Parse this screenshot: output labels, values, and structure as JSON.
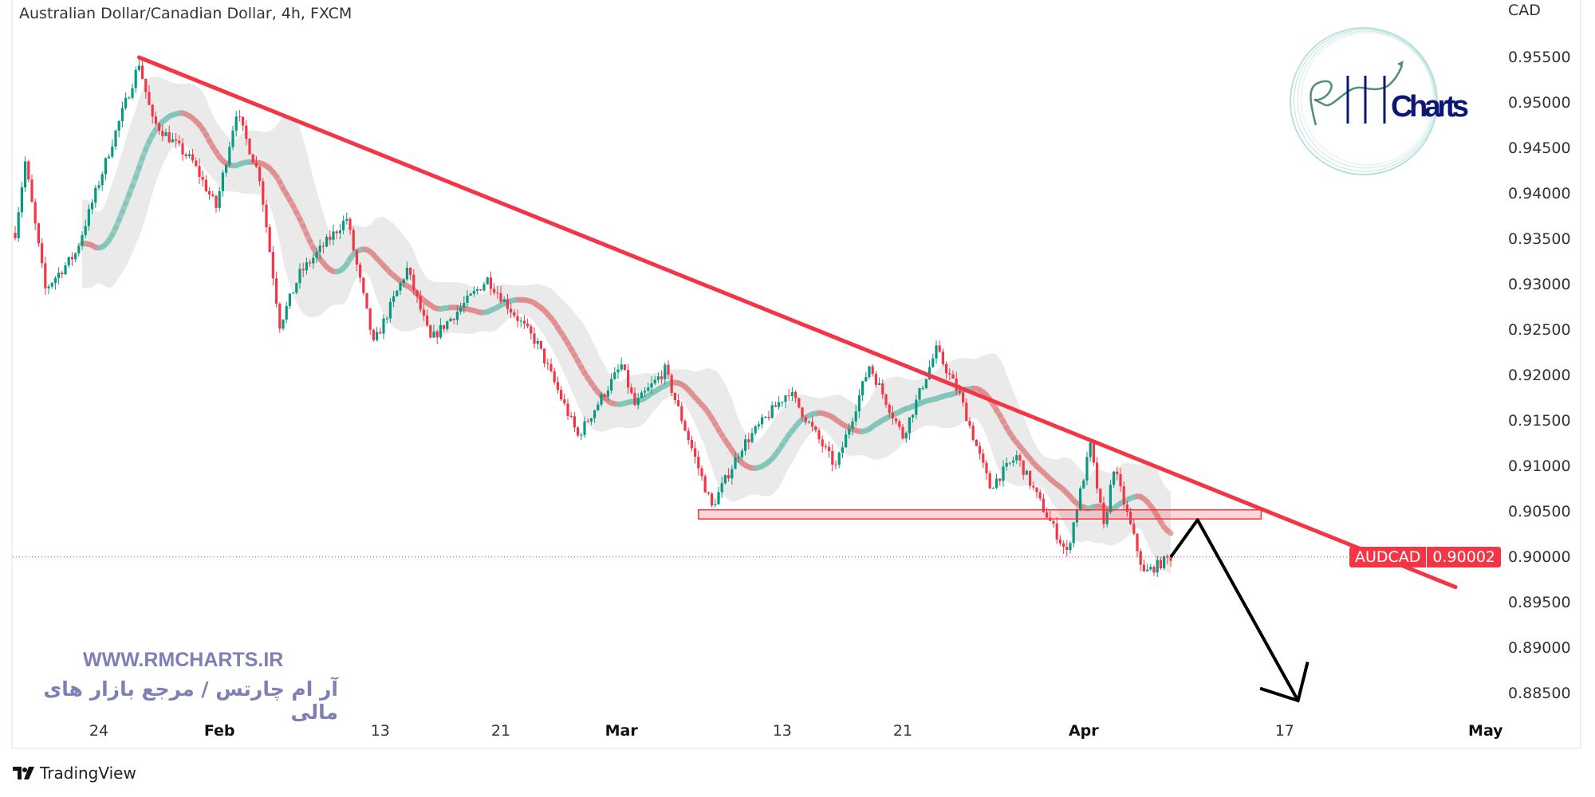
{
  "header": {
    "title": "Australian Dollar/Canadian Dollar, 4h, FXCM",
    "currency": "CAD"
  },
  "footer": {
    "brand": "TradingView"
  },
  "watermark": {
    "url": "WWW.RMCHARTS.IR",
    "tagline": "آر ام چارتس / مرجع بازار های مالی",
    "logo_text": "RM Charts"
  },
  "price_badge": {
    "symbol": "AUDCAD",
    "value": "0.90002"
  },
  "colors": {
    "up": "#089981",
    "down": "#f23645",
    "trendline": "#f23645",
    "arrow": "#000000",
    "ma_up": "#7fc4b8",
    "ma_down": "#e08a8a",
    "logo_navy": "#0d1775",
    "logo_teal": "#a8d8d4",
    "watermark": "#7d7fb5"
  },
  "chart_data": {
    "type": "candlestick",
    "title": "Australian Dollar/Canadian Dollar, 4h, FXCM",
    "ylabel": "CAD",
    "ylim": [
      0.884,
      0.958
    ],
    "y_ticks": [
      "0.95500",
      "0.95000",
      "0.94500",
      "0.94000",
      "0.93500",
      "0.93000",
      "0.92500",
      "0.92000",
      "0.91500",
      "0.91000",
      "0.90500",
      "0.90000",
      "0.89500",
      "0.89000",
      "0.88500"
    ],
    "x_ticks": [
      {
        "label": "24",
        "date": "2023-01-24",
        "bold": false
      },
      {
        "label": "Feb",
        "date": "2023-02-01",
        "bold": true
      },
      {
        "label": "13",
        "date": "2023-02-13",
        "bold": false
      },
      {
        "label": "21",
        "date": "2023-02-21",
        "bold": false
      },
      {
        "label": "Mar",
        "date": "2023-03-01",
        "bold": true
      },
      {
        "label": "13",
        "date": "2023-03-13",
        "bold": false
      },
      {
        "label": "21",
        "date": "2023-03-21",
        "bold": false
      },
      {
        "label": "Apr",
        "date": "2023-04-03",
        "bold": true
      },
      {
        "label": "17",
        "date": "2023-04-17",
        "bold": false
      },
      {
        "label": "May",
        "date": "2023-05-01",
        "bold": true
      }
    ],
    "price_path": [
      [
        "2023-01-17 20:00",
        0.9357
      ],
      [
        "2023-01-18 08:00",
        0.9435
      ],
      [
        "2023-01-19 08:00",
        0.9295
      ],
      [
        "2023-01-20 20:00",
        0.9334
      ],
      [
        "2023-01-24 16:00",
        0.9457
      ],
      [
        "2023-01-26 00:00",
        0.9544
      ],
      [
        "2023-01-26 16:00",
        0.948
      ],
      [
        "2023-01-30 16:00",
        0.9435
      ],
      [
        "2023-01-31 20:00",
        0.9385
      ],
      [
        "2023-02-01 20:00",
        0.949
      ],
      [
        "2023-02-03 00:00",
        0.9418
      ],
      [
        "2023-02-06 00:00",
        0.9256
      ],
      [
        "2023-02-07 00:00",
        0.9312
      ],
      [
        "2023-02-09 08:00",
        0.9373
      ],
      [
        "2023-02-10 16:00",
        0.9234
      ],
      [
        "2023-02-14 08:00",
        0.9317
      ],
      [
        "2023-02-15 12:00",
        0.9239
      ],
      [
        "2023-02-20 08:00",
        0.9306
      ],
      [
        "2023-02-22 20:00",
        0.9234
      ],
      [
        "2023-02-24 20:00",
        0.9133
      ],
      [
        "2023-03-01 00:00",
        0.9211
      ],
      [
        "2023-03-01 16:00",
        0.9167
      ],
      [
        "2023-03-03 04:00",
        0.9206
      ],
      [
        "2023-03-07 12:00",
        0.9055
      ],
      [
        "2023-03-09 00:00",
        0.9122
      ],
      [
        "2023-03-13 08:00",
        0.9183
      ],
      [
        "2023-03-15 16:00",
        0.9099
      ],
      [
        "2023-03-17 08:00",
        0.9211
      ],
      [
        "2023-03-21 00:00",
        0.9133
      ],
      [
        "2023-03-22 16:00",
        0.9228
      ],
      [
        "2023-03-23 20:00",
        0.9178
      ],
      [
        "2023-03-27 08:00",
        0.9077
      ],
      [
        "2023-03-28 16:00",
        0.9111
      ],
      [
        "2023-03-29 20:00",
        0.906
      ],
      [
        "2023-03-31 04:00",
        0.9004
      ],
      [
        "2023-04-03 08:00",
        0.9122
      ],
      [
        "2023-04-04 00:00",
        0.9032
      ],
      [
        "2023-04-04 12:00",
        0.9099
      ],
      [
        "2023-04-06 00:00",
        0.8982
      ],
      [
        "2023-04-07 08:00",
        0.9
      ]
    ],
    "last_price": 0.90002,
    "drawings": {
      "trendline": [
        [
          "2023-01-26 00:00",
          0.955
        ],
        [
          "2023-04-27 12:00",
          0.8967
        ]
      ],
      "support_zone": {
        "from": "2023-03-06 20:00",
        "to": "2023-04-13 20:00",
        "top": 0.9052,
        "bottom": 0.9042
      },
      "projection_arrow": [
        [
          "2023-04-07 08:00",
          0.9
        ],
        [
          "2023-04-10 16:00",
          0.9041
        ],
        [
          "2023-04-17 16:00",
          0.8842
        ]
      ]
    },
    "grid": false
  }
}
